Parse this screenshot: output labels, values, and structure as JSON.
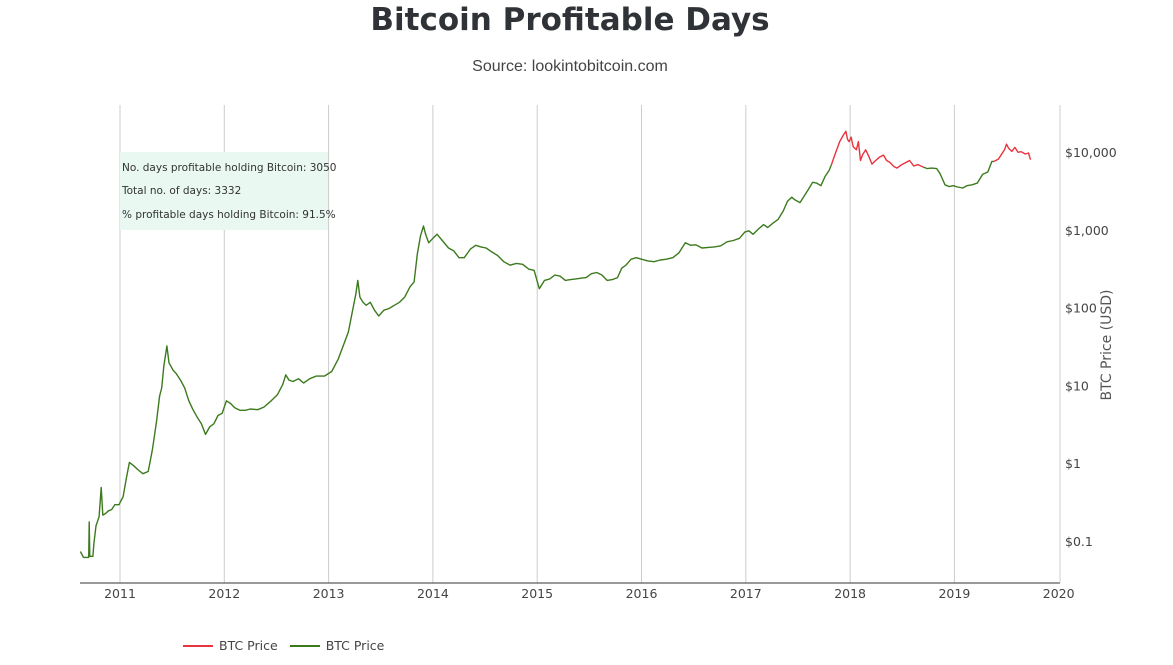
{
  "header": {
    "title": "Bitcoin Profitable Days",
    "subtitle": "Source: lookintobitcoin.com"
  },
  "annotation": {
    "line1": "No. days profitable holding Bitcoin: 3050",
    "line2": "Total no. of days: 3332",
    "line3": "% profitable days holding Bitcoin: 91.5%"
  },
  "colors": {
    "profitable": "#3c7a1e",
    "unprofitable": "#e8343e",
    "annotation_bg": "#e9f8f1",
    "grid": "#cccccc"
  },
  "chart_data": {
    "type": "line",
    "title": "Bitcoin Profitable Days",
    "subtitle": "Source: lookintobitcoin.com",
    "xlabel": "",
    "ylabel": "BTC Price (USD)",
    "y_scale": "log",
    "ylim": [
      0.03,
      30000
    ],
    "xlim": [
      2010.62,
      2020
    ],
    "x_ticks": [
      "2011",
      "2012",
      "2013",
      "2014",
      "2015",
      "2016",
      "2017",
      "2018",
      "2019",
      "2020"
    ],
    "y_ticks": [
      {
        "value": 0.1,
        "label": "$0.1"
      },
      {
        "value": 1,
        "label": "$1"
      },
      {
        "value": 10,
        "label": "$10"
      },
      {
        "value": 100,
        "label": "$100"
      },
      {
        "value": 1000,
        "label": "$1,000"
      },
      {
        "value": 10000,
        "label": "$10,000"
      }
    ],
    "grid": "vertical",
    "legend_position": "bottom-left",
    "series": [
      {
        "name": "BTC Price",
        "color": "#e8343e",
        "points": [
          [
            2017.82,
            7000
          ],
          [
            2017.86,
            10000
          ],
          [
            2017.9,
            14000
          ],
          [
            2017.935,
            17000
          ],
          [
            2017.96,
            19000
          ],
          [
            2017.975,
            15000
          ],
          [
            2017.99,
            14000
          ],
          [
            2018.01,
            16000
          ],
          [
            2018.03,
            12000
          ],
          [
            2018.06,
            11000
          ],
          [
            2018.08,
            14000
          ],
          [
            2018.1,
            8000
          ],
          [
            2018.12,
            9500
          ],
          [
            2018.15,
            11000
          ],
          [
            2018.18,
            9000
          ],
          [
            2018.21,
            7200
          ],
          [
            2018.24,
            7900
          ],
          [
            2018.28,
            8800
          ],
          [
            2018.32,
            9400
          ],
          [
            2018.35,
            8000
          ],
          [
            2018.38,
            7600
          ],
          [
            2018.42,
            6700
          ],
          [
            2018.45,
            6400
          ],
          [
            2018.49,
            7000
          ],
          [
            2018.53,
            7500
          ],
          [
            2018.57,
            8000
          ],
          [
            2018.61,
            6800
          ],
          [
            2018.65,
            7100
          ],
          [
            2018.7,
            6600
          ],
          null,
          [
            2019.38,
            7800
          ],
          [
            2019.42,
            8300
          ],
          [
            2019.45,
            9500
          ],
          [
            2019.48,
            11000
          ],
          [
            2019.5,
            13000
          ],
          [
            2019.52,
            11500
          ],
          [
            2019.55,
            10500
          ],
          [
            2019.58,
            11800
          ],
          [
            2019.61,
            10200
          ],
          [
            2019.64,
            10400
          ],
          [
            2019.68,
            9700
          ],
          [
            2019.71,
            10000
          ],
          [
            2019.73,
            8200
          ]
        ]
      },
      {
        "name": "BTC Price",
        "color": "#3c7a1e",
        "points": [
          [
            2010.62,
            0.075
          ],
          [
            2010.65,
            0.063
          ],
          [
            2010.7,
            0.063
          ],
          [
            2010.705,
            0.18
          ],
          [
            2010.71,
            0.065
          ],
          [
            2010.74,
            0.065
          ],
          [
            2010.75,
            0.095
          ],
          [
            2010.77,
            0.16
          ],
          [
            2010.8,
            0.21
          ],
          [
            2010.82,
            0.5
          ],
          [
            2010.835,
            0.22
          ],
          [
            2010.86,
            0.23
          ],
          [
            2010.89,
            0.25
          ],
          [
            2010.92,
            0.26
          ],
          [
            2010.95,
            0.3
          ],
          [
            2010.99,
            0.3
          ],
          [
            2011.03,
            0.38
          ],
          [
            2011.06,
            0.65
          ],
          [
            2011.09,
            1.05
          ],
          [
            2011.13,
            0.95
          ],
          [
            2011.17,
            0.85
          ],
          [
            2011.22,
            0.75
          ],
          [
            2011.27,
            0.8
          ],
          [
            2011.31,
            1.5
          ],
          [
            2011.35,
            3.5
          ],
          [
            2011.38,
            7.5
          ],
          [
            2011.4,
            9.5
          ],
          [
            2011.42,
            18
          ],
          [
            2011.45,
            33
          ],
          [
            2011.47,
            20
          ],
          [
            2011.51,
            16
          ],
          [
            2011.54,
            14.5
          ],
          [
            2011.58,
            12
          ],
          [
            2011.62,
            9.5
          ],
          [
            2011.66,
            6.5
          ],
          [
            2011.7,
            5.0
          ],
          [
            2011.74,
            4.0
          ],
          [
            2011.78,
            3.3
          ],
          [
            2011.82,
            2.4
          ],
          [
            2011.86,
            3.0
          ],
          [
            2011.9,
            3.3
          ],
          [
            2011.94,
            4.2
          ],
          [
            2011.98,
            4.5
          ],
          [
            2012.02,
            6.5
          ],
          [
            2012.06,
            6.0
          ],
          [
            2012.1,
            5.3
          ],
          [
            2012.15,
            4.9
          ],
          [
            2012.2,
            4.9
          ],
          [
            2012.25,
            5.1
          ],
          [
            2012.32,
            5.0
          ],
          [
            2012.38,
            5.4
          ],
          [
            2012.45,
            6.5
          ],
          [
            2012.51,
            7.8
          ],
          [
            2012.56,
            10.5
          ],
          [
            2012.59,
            14
          ],
          [
            2012.62,
            12
          ],
          [
            2012.66,
            11.5
          ],
          [
            2012.71,
            12.5
          ],
          [
            2012.76,
            11.0
          ],
          [
            2012.82,
            12.5
          ],
          [
            2012.88,
            13.5
          ],
          [
            2012.96,
            13.5
          ],
          [
            2013.03,
            15.5
          ],
          [
            2013.09,
            22
          ],
          [
            2013.14,
            33
          ],
          [
            2013.19,
            50
          ],
          [
            2013.22,
            80
          ],
          [
            2013.26,
            150
          ],
          [
            2013.28,
            230
          ],
          [
            2013.3,
            140
          ],
          [
            2013.33,
            120
          ],
          [
            2013.36,
            110
          ],
          [
            2013.4,
            120
          ],
          [
            2013.44,
            95
          ],
          [
            2013.48,
            80
          ],
          [
            2013.53,
            95
          ],
          [
            2013.58,
            100
          ],
          [
            2013.63,
            110
          ],
          [
            2013.68,
            120
          ],
          [
            2013.73,
            140
          ],
          [
            2013.78,
            190
          ],
          [
            2013.82,
            220
          ],
          [
            2013.85,
            500
          ],
          [
            2013.88,
            850
          ],
          [
            2013.91,
            1150
          ],
          [
            2013.93,
            900
          ],
          [
            2013.96,
            700
          ],
          [
            2014.0,
            800
          ],
          [
            2014.04,
            900
          ],
          [
            2014.09,
            750
          ],
          [
            2014.15,
            600
          ],
          [
            2014.2,
            550
          ],
          [
            2014.25,
            450
          ],
          [
            2014.3,
            450
          ],
          [
            2014.36,
            580
          ],
          [
            2014.41,
            650
          ],
          [
            2014.46,
            620
          ],
          [
            2014.51,
            600
          ],
          [
            2014.56,
            540
          ],
          [
            2014.62,
            480
          ],
          [
            2014.68,
            400
          ],
          [
            2014.74,
            360
          ],
          [
            2014.8,
            380
          ],
          [
            2014.86,
            370
          ],
          [
            2014.92,
            320
          ],
          [
            2014.97,
            310
          ],
          [
            2015.02,
            180
          ],
          [
            2015.07,
            230
          ],
          [
            2015.12,
            240
          ],
          [
            2015.17,
            270
          ],
          [
            2015.22,
            260
          ],
          [
            2015.27,
            230
          ],
          [
            2015.32,
            235
          ],
          [
            2015.37,
            240
          ],
          [
            2015.42,
            245
          ],
          [
            2015.47,
            250
          ],
          [
            2015.52,
            280
          ],
          [
            2015.57,
            290
          ],
          [
            2015.62,
            270
          ],
          [
            2015.67,
            230
          ],
          [
            2015.72,
            235
          ],
          [
            2015.77,
            250
          ],
          [
            2015.81,
            330
          ],
          [
            2015.85,
            360
          ],
          [
            2015.9,
            430
          ],
          [
            2015.95,
            450
          ],
          [
            2016.0,
            430
          ],
          [
            2016.06,
            410
          ],
          [
            2016.12,
            400
          ],
          [
            2016.18,
            420
          ],
          [
            2016.24,
            430
          ],
          [
            2016.3,
            450
          ],
          [
            2016.36,
            520
          ],
          [
            2016.42,
            700
          ],
          [
            2016.47,
            650
          ],
          [
            2016.52,
            660
          ],
          [
            2016.58,
            600
          ],
          [
            2016.64,
            610
          ],
          [
            2016.7,
            620
          ],
          [
            2016.76,
            640
          ],
          [
            2016.82,
            720
          ],
          [
            2016.88,
            750
          ],
          [
            2016.94,
            800
          ],
          [
            2016.99,
            960
          ],
          [
            2017.03,
            1000
          ],
          [
            2017.07,
            900
          ],
          [
            2017.12,
            1050
          ],
          [
            2017.17,
            1200
          ],
          [
            2017.21,
            1100
          ],
          [
            2017.26,
            1250
          ],
          [
            2017.31,
            1400
          ],
          [
            2017.36,
            1800
          ],
          [
            2017.4,
            2400
          ],
          [
            2017.44,
            2700
          ],
          [
            2017.47,
            2500
          ],
          [
            2017.52,
            2300
          ],
          [
            2017.56,
            2800
          ],
          [
            2017.6,
            3400
          ],
          [
            2017.64,
            4200
          ],
          [
            2017.68,
            4100
          ],
          [
            2017.72,
            3800
          ],
          [
            2017.76,
            5000
          ],
          [
            2017.8,
            6000
          ],
          [
            2017.82,
            7000
          ],
          null,
          [
            2018.7,
            6600
          ],
          [
            2018.74,
            6300
          ],
          [
            2018.78,
            6400
          ],
          [
            2018.83,
            6300
          ],
          [
            2018.86,
            5500
          ],
          [
            2018.89,
            4500
          ],
          [
            2018.91,
            3900
          ],
          [
            2018.95,
            3700
          ],
          [
            2018.99,
            3800
          ],
          [
            2019.03,
            3650
          ],
          [
            2019.08,
            3550
          ],
          [
            2019.12,
            3800
          ],
          [
            2019.17,
            3900
          ],
          [
            2019.22,
            4100
          ],
          [
            2019.27,
            5300
          ],
          [
            2019.32,
            5700
          ],
          [
            2019.36,
            7800
          ],
          [
            2019.38,
            7800
          ]
        ]
      }
    ]
  },
  "legend": {
    "item1": "BTC Price",
    "item2": "BTC Price"
  }
}
